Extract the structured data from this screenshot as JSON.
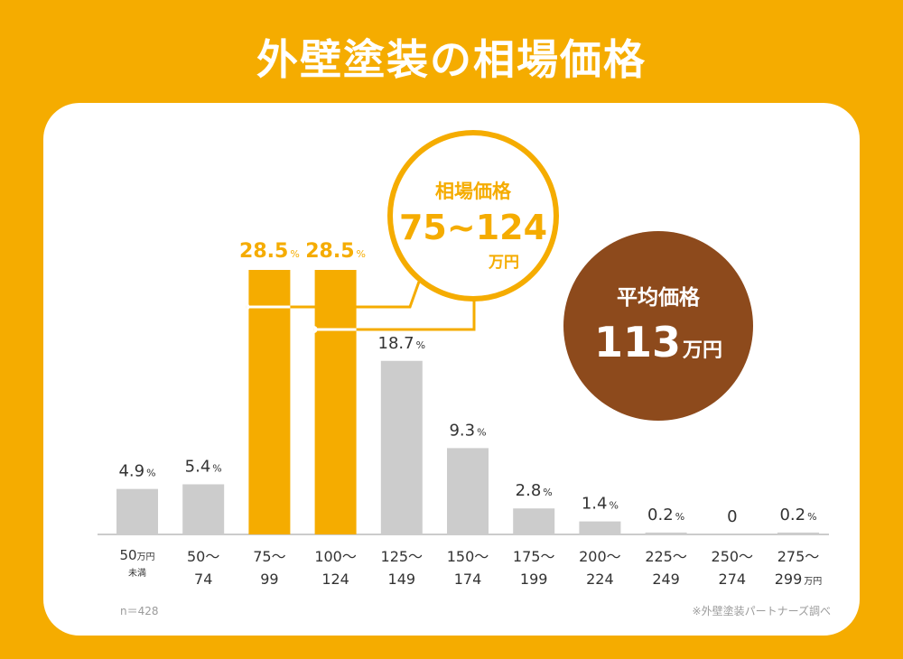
{
  "title": "外壁塗装の相場価格",
  "chart_data": {
    "type": "bar",
    "categories": [
      [
        "50",
        "万円",
        "未満"
      ],
      [
        "50～",
        "74"
      ],
      [
        "75～",
        "99"
      ],
      [
        "100～",
        "124"
      ],
      [
        "125～",
        "149"
      ],
      [
        "150～",
        "174"
      ],
      [
        "175～",
        "199"
      ],
      [
        "200～",
        "224"
      ],
      [
        "225～",
        "249"
      ],
      [
        "250～",
        "274"
      ],
      [
        "275～",
        "299",
        "万円"
      ]
    ],
    "values": [
      4.9,
      5.4,
      28.5,
      28.5,
      18.7,
      9.3,
      2.8,
      1.4,
      0.2,
      0,
      0.2
    ],
    "value_labels": [
      "4.9",
      "5.4",
      "28.5",
      "28.5",
      "18.7",
      "9.3",
      "2.8",
      "1.4",
      "0.2",
      "0",
      "0.2"
    ],
    "unit": "%",
    "highlight": [
      2,
      3
    ],
    "ylim": [
      0,
      30
    ],
    "colors": {
      "bar": "#CCCCCC",
      "highlight": "#F5AC00",
      "label": "#333333",
      "axis": "#999999"
    }
  },
  "range_callout": {
    "label": "相場価格",
    "value": "75~124",
    "unit": "万円"
  },
  "average_callout": {
    "label": "平均価格",
    "value": "113",
    "unit": "万円"
  },
  "sample_note": "n＝428",
  "source_note": "※外壁塗装パートナーズ調べ",
  "colors": {
    "background": "#F5AC00",
    "card": "#FFFFFF",
    "accent": "#F5AC00",
    "average": "#8D4A1C"
  }
}
